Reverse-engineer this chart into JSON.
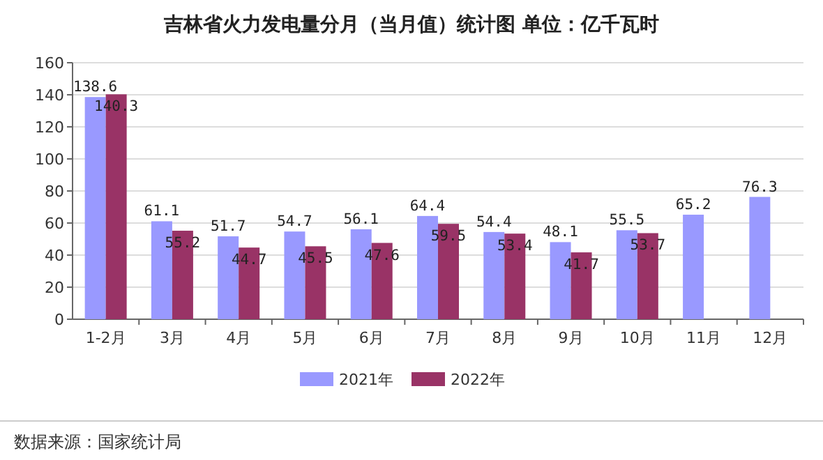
{
  "chart_data": {
    "type": "bar",
    "title": "吉林省火力发电量分月（当月值）统计图 单位：亿千瓦时",
    "categories": [
      "1-2月",
      "3月",
      "4月",
      "5月",
      "6月",
      "7月",
      "8月",
      "9月",
      "10月",
      "11月",
      "12月"
    ],
    "series": [
      {
        "name": "2021年",
        "color": "#9999ff",
        "values": [
          138.6,
          61.1,
          51.7,
          54.7,
          56.1,
          64.4,
          54.4,
          48.1,
          55.5,
          65.2,
          76.3
        ]
      },
      {
        "name": "2022年",
        "color": "#993366",
        "values": [
          140.3,
          55.2,
          44.7,
          45.5,
          47.6,
          59.5,
          53.4,
          41.7,
          53.7,
          null,
          null
        ]
      }
    ],
    "ylim": [
      0,
      160
    ],
    "yticks": [
      0,
      20,
      40,
      60,
      80,
      100,
      120,
      140,
      160
    ],
    "grid": "y",
    "legend": "bottom",
    "data_labels": true,
    "annotations": [
      "数据来源：国家统计局"
    ]
  }
}
